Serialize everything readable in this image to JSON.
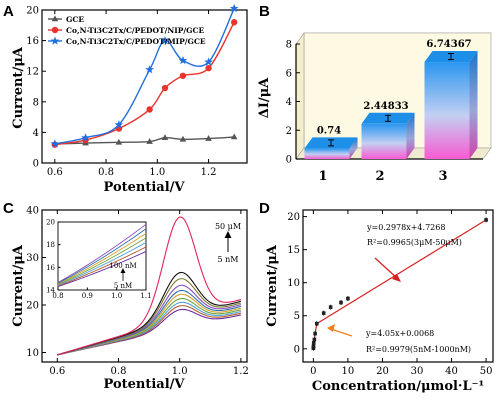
{
  "colors": {
    "gce": "#555555",
    "nip": "#e8342d",
    "mip": "#1f6fe0",
    "fit": "#d61f1f",
    "arrow_lo": "#f07f20"
  },
  "panels": {
    "a": "A",
    "b": "B",
    "c": "C",
    "d": "D"
  },
  "chart_data": [
    {
      "id": "A",
      "type": "line",
      "xlabel": "Potential/V",
      "ylabel": "Current/μA",
      "xlim": [
        0.55,
        1.35
      ],
      "ylim": [
        0,
        20
      ],
      "xticks": [
        "0.6",
        "0.8",
        "1.0",
        "1.2"
      ],
      "yticks": [
        "0",
        "4",
        "8",
        "12",
        "16",
        "20"
      ],
      "series": [
        {
          "name": "GCE",
          "marker": "triangle",
          "x": [
            0.6,
            0.72,
            0.85,
            0.97,
            1.03,
            1.1,
            1.2,
            1.3
          ],
          "y": [
            2.5,
            2.6,
            2.7,
            2.8,
            3.3,
            3.1,
            3.2,
            3.4
          ]
        },
        {
          "name": "Co,N-Ti3C2Tx/C/PEDOT/NIP/GCE",
          "marker": "circle",
          "x": [
            0.6,
            0.72,
            0.85,
            0.97,
            1.03,
            1.1,
            1.2,
            1.3
          ],
          "y": [
            2.4,
            3.0,
            4.5,
            7.0,
            9.8,
            11.4,
            12.4,
            18.4
          ]
        },
        {
          "name": "Co,N-Ti3C2Tx/C/PEDOT/MIP/GCE",
          "marker": "star",
          "x": [
            0.6,
            0.72,
            0.85,
            0.97,
            1.03,
            1.1,
            1.2,
            1.3
          ],
          "y": [
            2.5,
            3.3,
            5.0,
            12.2,
            16.0,
            13.4,
            13.2,
            20.2
          ]
        }
      ]
    },
    {
      "id": "B",
      "type": "bar",
      "xlabel": "",
      "ylabel": "ΔI/μA",
      "categories": [
        "1",
        "2",
        "3"
      ],
      "values": [
        0.74,
        2.44833,
        6.74367
      ],
      "labels": [
        "0.74",
        "2.44833",
        "6.74367"
      ],
      "ylim": [
        0,
        8
      ],
      "yticks": [
        "0",
        "2",
        "4",
        "6",
        "8"
      ]
    },
    {
      "id": "C",
      "type": "line",
      "xlabel": "Potential/V",
      "ylabel": "Current/μA",
      "xlim": [
        0.55,
        1.22
      ],
      "ylim": [
        8,
        40
      ],
      "xticks": [
        "0.6",
        "0.8",
        "1.0",
        "1.2"
      ],
      "yticks": [
        "10",
        "20",
        "30",
        "40"
      ],
      "peaks": [
        19.0,
        19.8,
        20.5,
        21.3,
        22.2,
        23.0,
        24.1,
        25.5,
        26.8,
        38.5
      ],
      "annotations": {
        "high_top": "50 μM",
        "high_bottom": "5 nM"
      },
      "inset": {
        "xlim": [
          0.8,
          1.1
        ],
        "ylim": [
          14,
          20
        ],
        "xticks": [
          "0.8",
          "0.9",
          "1.0",
          "1.1"
        ],
        "yticks": [
          "14",
          "16",
          "18",
          "20"
        ],
        "end_values": [
          17.4,
          17.8,
          18.2,
          18.6,
          19.0,
          19.4,
          19.8
        ],
        "annotations": {
          "top": "100 nM",
          "bottom": "5 nM"
        }
      }
    },
    {
      "id": "D",
      "type": "scatter",
      "xlabel": "Concentration/μmol·L⁻¹",
      "ylabel": "Current/μA",
      "xlim": [
        -3,
        52
      ],
      "ylim": [
        -2,
        21
      ],
      "xticks": [
        "0",
        "10",
        "20",
        "30",
        "40",
        "50"
      ],
      "yticks": [
        "0",
        "5",
        "10",
        "15",
        "20"
      ],
      "x": [
        0.005,
        0.01,
        0.05,
        0.1,
        0.3,
        0.5,
        1,
        3,
        5,
        8,
        10,
        50
      ],
      "y": [
        0.09,
        0.2,
        0.4,
        0.9,
        1.4,
        2.3,
        3.8,
        5.4,
        6.3,
        7.0,
        7.6,
        19.5
      ],
      "fits": [
        {
          "eq": "y=0.2978x+4.7268",
          "r2": "R²=0.9965(3μM-50μM)"
        },
        {
          "eq": "y=4.05x+0.0068",
          "r2": "R²=0.9979(5nM-1000nM)"
        }
      ]
    }
  ]
}
